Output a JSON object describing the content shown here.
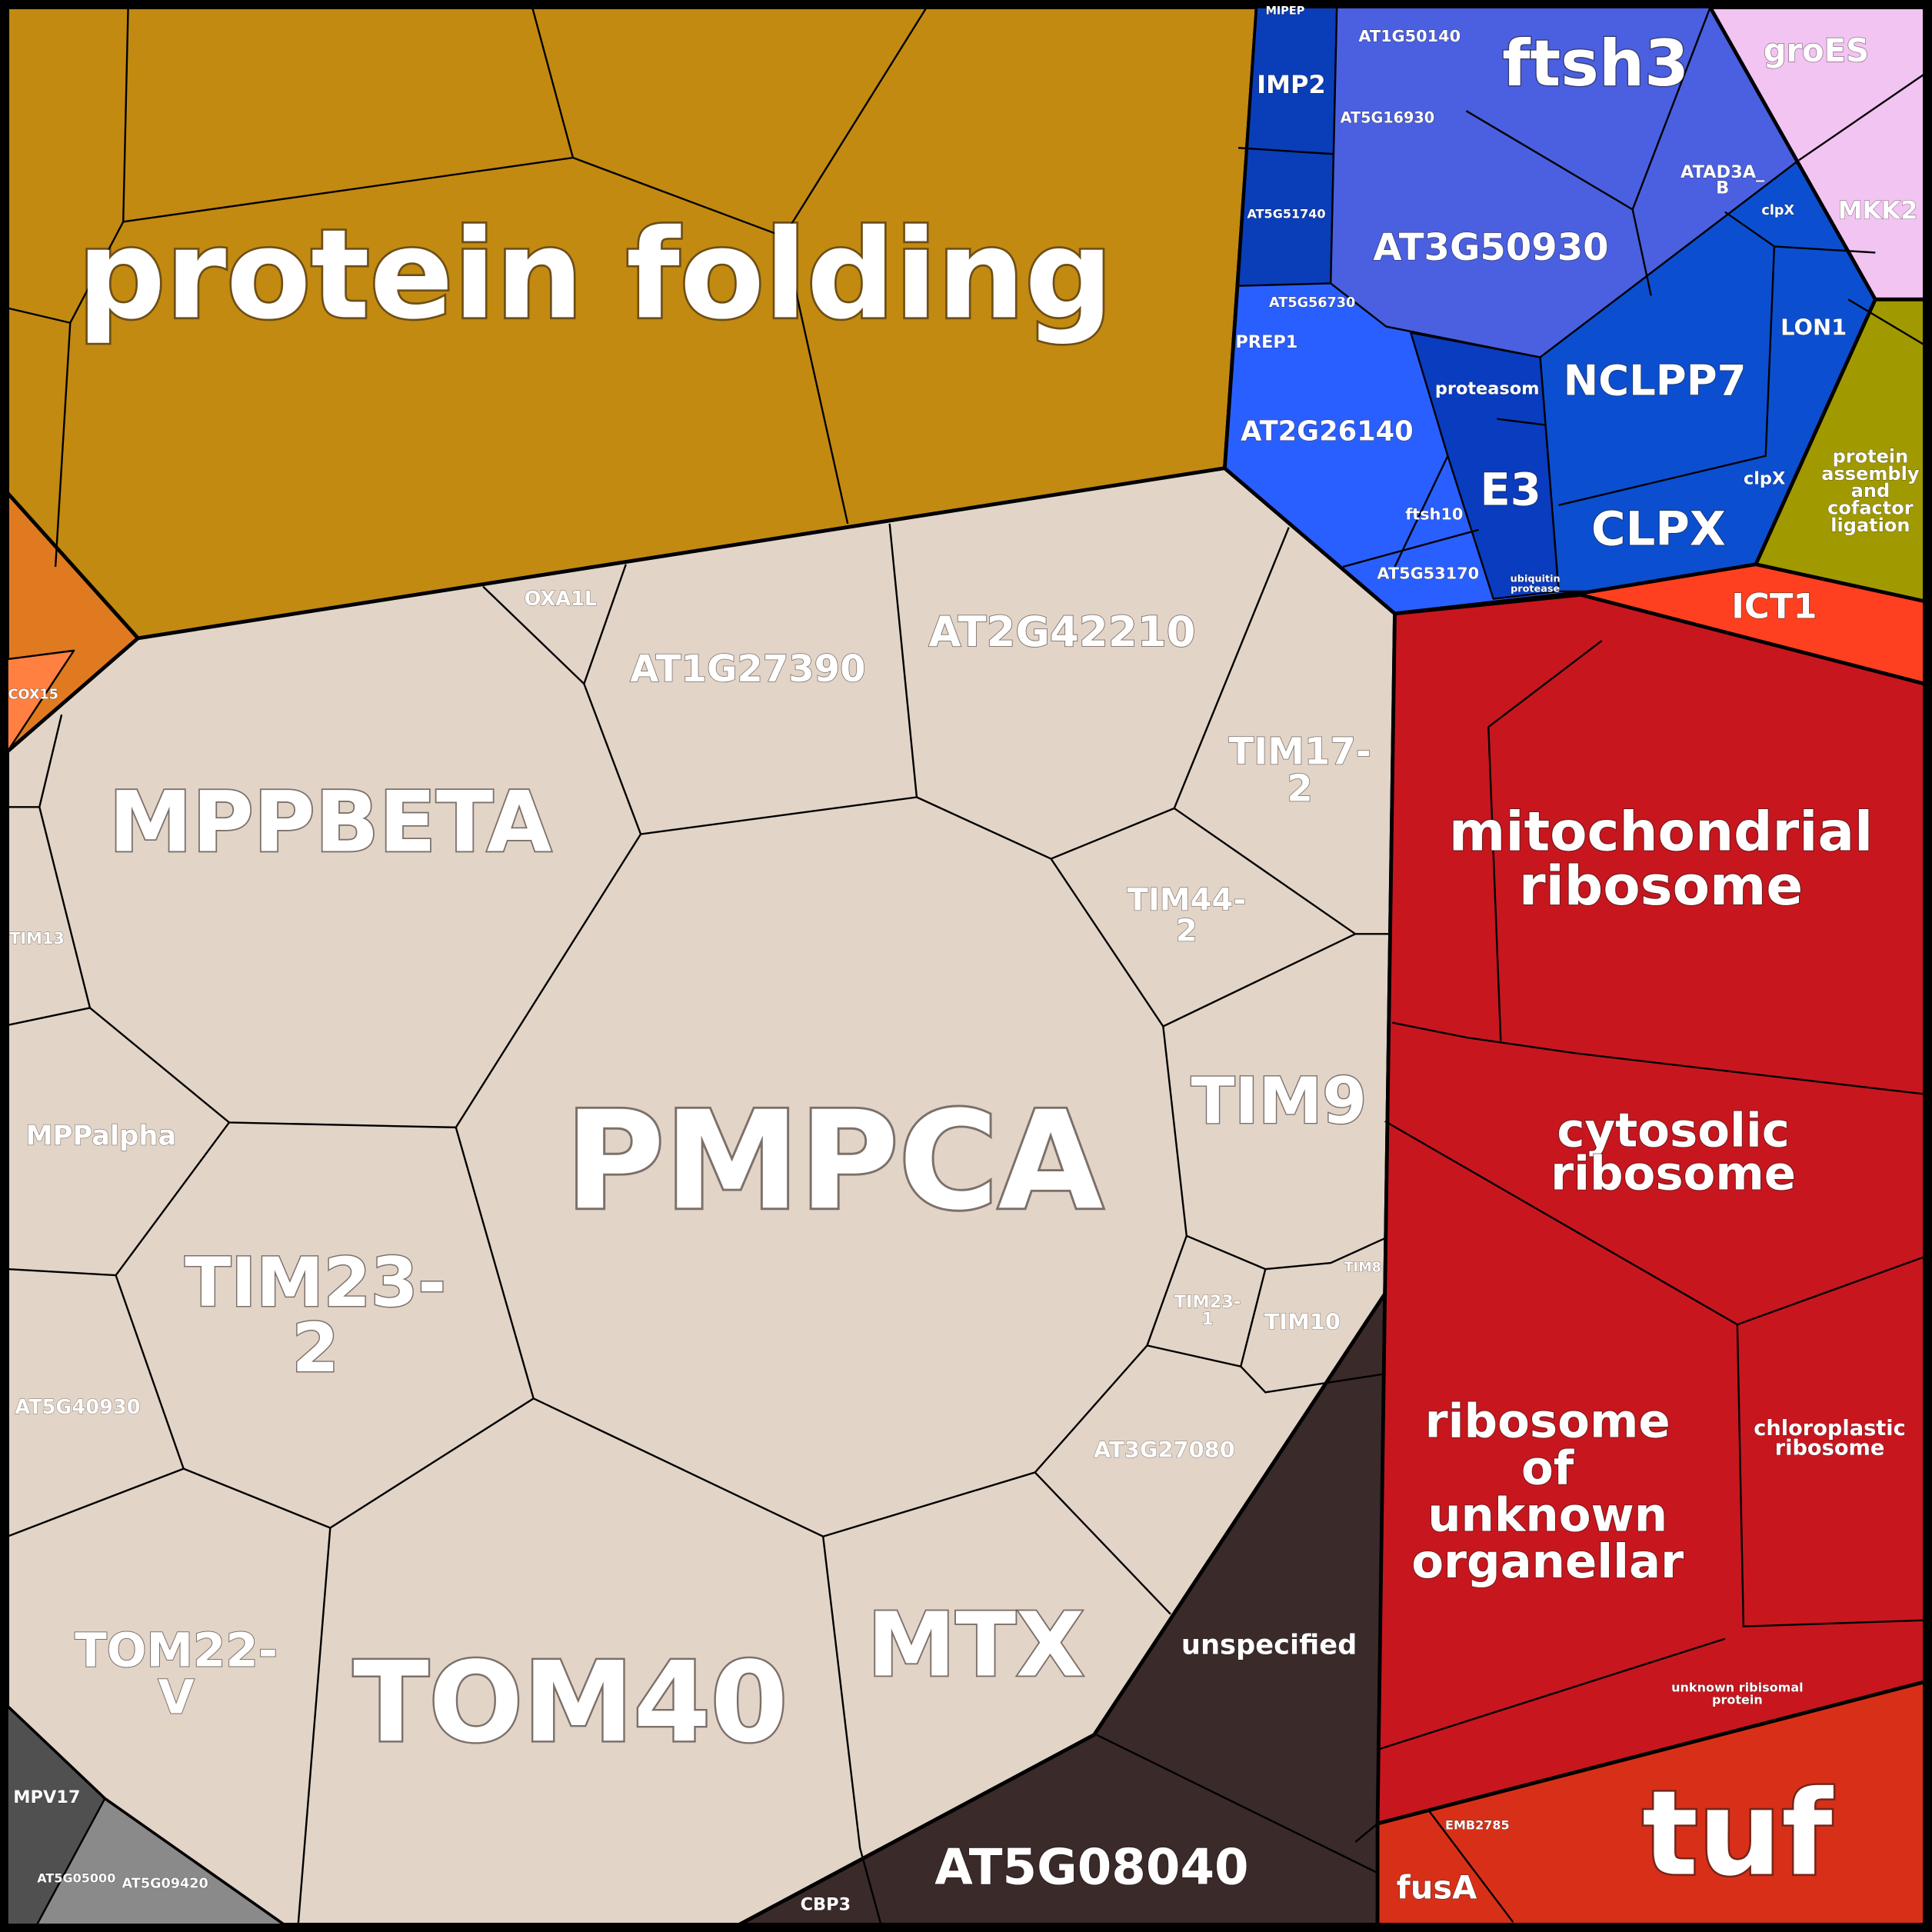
{
  "treemap": {
    "labels": [
      "protein folding",
      "PMPCA",
      "MPPBETA",
      "TOM40",
      "MTX",
      [
        "TIM23-",
        "2"
      ],
      "TIM9",
      [
        "TOM22-",
        "V"
      ],
      "AT2G42210",
      "AT1G27390",
      [
        "TIM17-",
        "2"
      ],
      [
        "TIM44-",
        "2"
      ],
      "OXA1L",
      "MPPalpha",
      "TIM13",
      "AT5G40930",
      "AT3G27080",
      [
        "TIM23-",
        "1"
      ],
      "TIM10",
      "TIM8",
      "unspecified",
      "AT5G08040",
      "CBP3",
      "MPV17",
      "AT5G05000",
      "AT5G09420",
      "COX15",
      [
        "mitochondrial",
        "ribosome"
      ],
      [
        "cytosolic",
        "ribosome"
      ],
      [
        "ribosome",
        "of",
        "unknown",
        "organellar"
      ],
      [
        "chloroplastic",
        "ribosome"
      ],
      [
        "unknown ribisomal",
        "protein"
      ],
      "tuf",
      "fusA",
      "EMB2785",
      "ICT1",
      [
        "protein",
        "assembly",
        "and",
        "cofactor",
        "ligation"
      ],
      "groES",
      "MKK2",
      "ftsh3",
      "AT3G50930",
      "AT1G50140",
      "AT5G16930",
      [
        "ATAD3A_",
        "B"
      ],
      "IMP2",
      "AT5G51740",
      "MIPEP",
      "AT5G56730",
      "PREP1",
      "AT2G26140",
      "proteasom",
      "E3",
      "ftsh10",
      "AT5G53170",
      "NCLPP7",
      "CLPX",
      "LON1",
      "clpX",
      "clpX",
      [
        "ubiquitin",
        "protease"
      ]
    ]
  }
}
